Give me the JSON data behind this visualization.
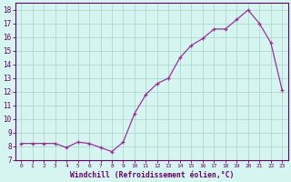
{
  "x": [
    0,
    1,
    2,
    3,
    4,
    5,
    6,
    7,
    8,
    9,
    10,
    11,
    12,
    13,
    14,
    15,
    16,
    17,
    18,
    19,
    20,
    21,
    22,
    23
  ],
  "y": [
    8.2,
    8.2,
    8.2,
    8.2,
    7.9,
    8.3,
    8.2,
    7.9,
    7.6,
    8.3,
    10.4,
    11.8,
    12.6,
    13.0,
    14.5,
    15.4,
    15.9,
    16.6,
    16.6,
    17.3,
    18.0,
    17.0,
    15.6,
    12.1
  ],
  "line_color": "#993399",
  "bg_color": "#d6f5f0",
  "grid_color": "#b0d9cc",
  "xlabel": "Windchill (Refroidissement éolien,°C)",
  "ylabel_ticks": [
    7,
    8,
    9,
    10,
    11,
    12,
    13,
    14,
    15,
    16,
    17,
    18
  ],
  "xtick_labels": [
    "0",
    "1",
    "2",
    "3",
    "4",
    "5",
    "6",
    "7",
    "8",
    "9",
    "10",
    "11",
    "12",
    "13",
    "14",
    "15",
    "16",
    "17",
    "18",
    "19",
    "20",
    "21",
    "22",
    "23"
  ],
  "xlim": [
    -0.5,
    23.5
  ],
  "ylim": [
    7.0,
    18.5
  ],
  "axis_color": "#660066",
  "spine_color": "#660066"
}
